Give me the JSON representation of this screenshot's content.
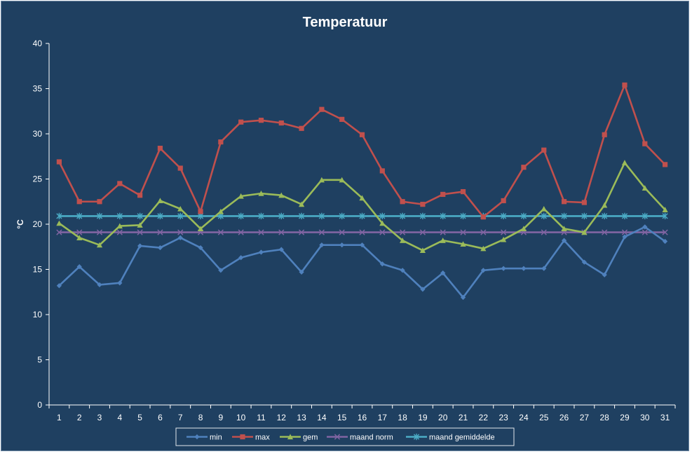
{
  "chart_data": {
    "type": "line",
    "title": "Temperatuur",
    "xlabel": "",
    "ylabel": "°C",
    "ylim": [
      0,
      40
    ],
    "yticks": [
      "0",
      "5",
      "10",
      "15",
      "20",
      "25",
      "30",
      "35",
      "40"
    ],
    "categories": [
      "1",
      "2",
      "3",
      "4",
      "5",
      "6",
      "7",
      "8",
      "9",
      "10",
      "11",
      "12",
      "13",
      "14",
      "15",
      "16",
      "17",
      "18",
      "19",
      "20",
      "21",
      "22",
      "23",
      "24",
      "25",
      "26",
      "27",
      "28",
      "29",
      "30",
      "31"
    ],
    "grid": false,
    "legend_position": "bottom",
    "background_color": "#1f4061",
    "series": [
      {
        "name": "min",
        "color": "#4f81bd",
        "marker": "diamond",
        "values": [
          13.2,
          15.3,
          13.3,
          13.5,
          17.6,
          17.4,
          18.5,
          17.4,
          14.9,
          16.3,
          16.9,
          17.2,
          14.7,
          17.7,
          17.7,
          17.7,
          15.6,
          14.9,
          12.8,
          14.6,
          11.9,
          14.9,
          15.1,
          15.1,
          15.1,
          18.2,
          15.8,
          14.4,
          18.6,
          19.7,
          18.1
        ]
      },
      {
        "name": "max",
        "color": "#c0504d",
        "marker": "square",
        "values": [
          26.9,
          22.5,
          22.5,
          24.5,
          23.2,
          28.4,
          26.2,
          21.4,
          29.1,
          31.3,
          31.5,
          31.2,
          30.6,
          32.7,
          31.6,
          29.9,
          25.9,
          22.5,
          22.2,
          23.3,
          23.6,
          20.8,
          22.6,
          26.3,
          28.2,
          22.5,
          22.4,
          29.9,
          35.4,
          28.9,
          26.6
        ]
      },
      {
        "name": "gem",
        "color": "#9bbb59",
        "marker": "triangle",
        "values": [
          20.1,
          18.5,
          17.7,
          19.8,
          19.9,
          22.6,
          21.7,
          19.5,
          21.4,
          23.1,
          23.4,
          23.2,
          22.2,
          24.9,
          24.9,
          22.9,
          20.1,
          18.2,
          17.1,
          18.2,
          17.8,
          17.3,
          18.3,
          19.5,
          21.7,
          19.5,
          19.1,
          22.1,
          26.8,
          24.0,
          21.6
        ]
      },
      {
        "name": "maand norm",
        "color": "#8064a2",
        "marker": "x",
        "values": [
          19.1,
          19.1,
          19.1,
          19.1,
          19.1,
          19.1,
          19.1,
          19.1,
          19.1,
          19.1,
          19.1,
          19.1,
          19.1,
          19.1,
          19.1,
          19.1,
          19.1,
          19.1,
          19.1,
          19.1,
          19.1,
          19.1,
          19.1,
          19.1,
          19.1,
          19.1,
          19.1,
          19.1,
          19.1,
          19.1,
          19.1
        ]
      },
      {
        "name": "maand gemiddelde",
        "color": "#4bacc6",
        "marker": "star",
        "values": [
          20.9,
          20.9,
          20.9,
          20.9,
          20.9,
          20.9,
          20.9,
          20.9,
          20.9,
          20.9,
          20.9,
          20.9,
          20.9,
          20.9,
          20.9,
          20.9,
          20.9,
          20.9,
          20.9,
          20.9,
          20.9,
          20.9,
          20.9,
          20.9,
          20.9,
          20.9,
          20.9,
          20.9,
          20.9,
          20.9,
          20.9
        ]
      }
    ]
  }
}
